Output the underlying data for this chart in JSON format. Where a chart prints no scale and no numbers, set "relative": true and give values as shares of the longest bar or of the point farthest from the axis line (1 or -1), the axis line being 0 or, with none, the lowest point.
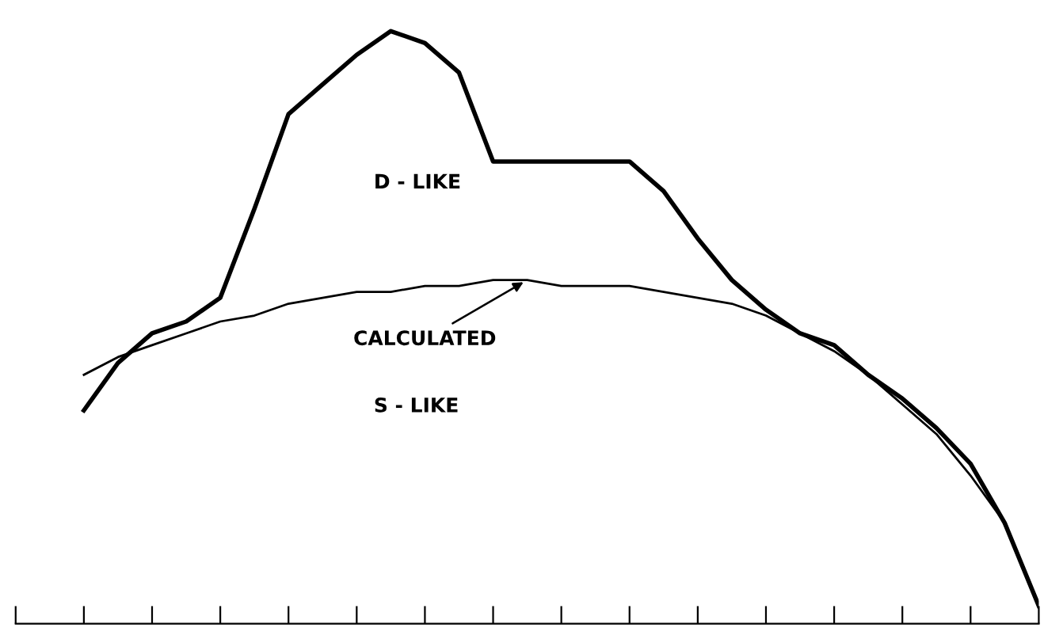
{
  "chart_data": {
    "type": "line",
    "relative": true,
    "categories": [
      null,
      null,
      null,
      null,
      null,
      null,
      null,
      null,
      null,
      null,
      null,
      null,
      null,
      null,
      null,
      null,
      null,
      null,
      null,
      null,
      null,
      null,
      null,
      null,
      null,
      null,
      null,
      null,
      null,
      null,
      null
    ],
    "series": [
      {
        "color": "#000000",
        "values": [
          null,
          null,
          0.36,
          0.44,
          0.49,
          0.51,
          0.55,
          0.7,
          0.86,
          0.91,
          0.96,
          1.0,
          0.98,
          0.93,
          0.78,
          0.78,
          0.78,
          0.78,
          0.78,
          0.73,
          0.65,
          0.58,
          0.53,
          0.49,
          0.47,
          0.42,
          0.38,
          0.33,
          0.27,
          0.17,
          0.03
        ]
      },
      {
        "name": "CALCULATED",
        "color": "#000000",
        "values": [
          null,
          null,
          0.42,
          0.45,
          0.47,
          0.49,
          0.51,
          0.52,
          0.54,
          0.55,
          0.56,
          0.56,
          0.57,
          0.57,
          0.58,
          0.58,
          0.57,
          0.57,
          0.57,
          0.56,
          0.55,
          0.54,
          0.52,
          0.49,
          0.46,
          0.42,
          0.37,
          0.32,
          0.25,
          0.17,
          null
        ]
      }
    ],
    "annotations": [
      "D - LIKE",
      "S - LIKE"
    ],
    "grid": false,
    "legend": "center"
  }
}
